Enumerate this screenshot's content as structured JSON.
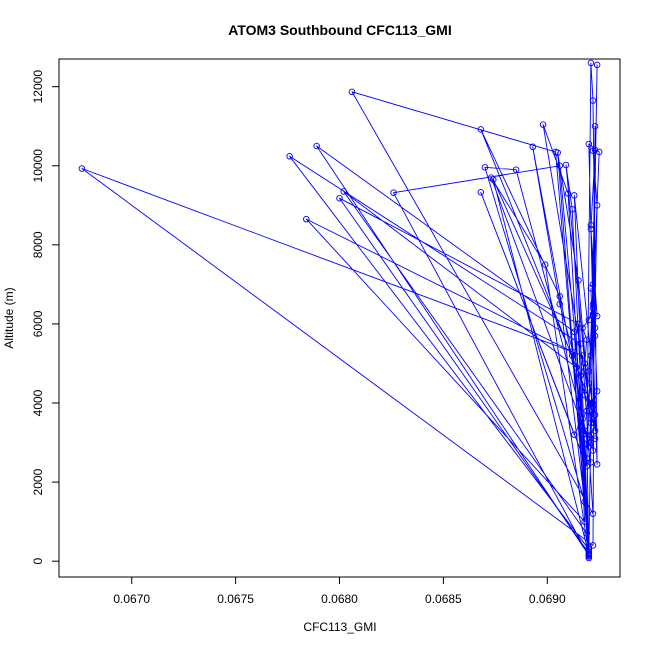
{
  "chart_data": {
    "type": "line",
    "title": "ATOM3 Southbound CFC113_GMI",
    "xlabel": "CFC113_GMI",
    "ylabel": "Altitude (m)",
    "xlim": [
      0.06665,
      0.06935
    ],
    "ylim": [
      -400,
      12700
    ],
    "x_ticks": [
      0.067,
      0.0675,
      0.068,
      0.0685,
      0.069
    ],
    "x_tick_labels": [
      "0.0670",
      "0.0675",
      "0.0680",
      "0.0685",
      "0.0690"
    ],
    "y_ticks": [
      0,
      2000,
      4000,
      6000,
      8000,
      10000,
      12000
    ],
    "y_tick_labels": [
      "0",
      "2000",
      "4000",
      "6000",
      "8000",
      "10000",
      "12000"
    ],
    "grid": false,
    "line_color": "#0000ff",
    "marker": "open-circle",
    "series": [
      {
        "points": [
          [
            0.0692,
            250
          ],
          [
            0.06924,
            12550
          ],
          [
            0.06921,
            3000
          ],
          [
            0.06923,
            11000
          ],
          [
            0.06922,
            400
          ],
          [
            0.06676,
            9930
          ],
          [
            0.06917,
            5200
          ],
          [
            0.06922,
            1200
          ],
          [
            0.06806,
            11870
          ],
          [
            0.06904,
            10350
          ],
          [
            0.0692,
            300
          ],
          [
            0.06776,
            10240
          ],
          [
            0.06916,
            5500
          ],
          [
            0.0692,
            150
          ],
          [
            0.06789,
            10500
          ],
          [
            0.06913,
            5800
          ],
          [
            0.06918,
            1000
          ],
          [
            0.06784,
            8650
          ],
          [
            0.06912,
            5300
          ],
          [
            0.0692,
            200
          ],
          [
            0.068,
            9180
          ],
          [
            0.06915,
            6000
          ],
          [
            0.06919,
            700
          ],
          [
            0.06802,
            9350
          ],
          [
            0.06914,
            4900
          ],
          [
            0.0692,
            120
          ],
          [
            0.06826,
            9320
          ],
          [
            0.06906,
            10000
          ],
          [
            0.06919,
            2400
          ],
          [
            0.06868,
            9330
          ],
          [
            0.06913,
            3200
          ],
          [
            0.06921,
            4000
          ],
          [
            0.06868,
            10920
          ],
          [
            0.06906,
            6700
          ],
          [
            0.06918,
            1500
          ],
          [
            0.0687,
            9960
          ],
          [
            0.06885,
            9900
          ],
          [
            0.0692,
            3000
          ],
          [
            0.06873,
            9700
          ],
          [
            0.06899,
            7500
          ],
          [
            0.0692,
            180
          ],
          [
            0.06874,
            9650
          ],
          [
            0.06912,
            5200
          ],
          [
            0.06921,
            2500
          ],
          [
            0.06893,
            10480
          ],
          [
            0.06906,
            6500
          ],
          [
            0.06922,
            3500
          ],
          [
            0.06898,
            11040
          ],
          [
            0.0691,
            9300
          ],
          [
            0.0692,
            80
          ],
          [
            0.06905,
            10330
          ],
          [
            0.06915,
            7100
          ],
          [
            0.06922,
            2800
          ],
          [
            0.06909,
            10020
          ],
          [
            0.06912,
            8900
          ],
          [
            0.0692,
            350
          ],
          [
            0.06913,
            9250
          ],
          [
            0.06921,
            5200
          ],
          [
            0.06922,
            6250
          ],
          [
            0.0692,
            10550
          ],
          [
            0.06925,
            10350
          ],
          [
            0.06919,
            2600
          ],
          [
            0.06921,
            12600
          ],
          [
            0.06922,
            11650
          ],
          [
            0.06924,
            2450
          ],
          [
            0.06921,
            6900
          ],
          [
            0.06922,
            5500
          ],
          [
            0.06923,
            3700
          ],
          [
            0.0692,
            4500
          ],
          [
            0.06922,
            7000
          ],
          [
            0.06923,
            5900
          ],
          [
            0.06921,
            8500
          ],
          [
            0.06922,
            6500
          ],
          [
            0.0692,
            4800
          ],
          [
            0.06923,
            3300
          ],
          [
            0.06922,
            6200
          ],
          [
            0.06924,
            6200
          ],
          [
            0.06921,
            8400
          ],
          [
            0.06923,
            10400
          ],
          [
            0.06922,
            10380
          ],
          [
            0.06924,
            9000
          ],
          [
            0.06922,
            4000
          ],
          [
            0.06921,
            3200
          ],
          [
            0.06923,
            3100
          ],
          [
            0.06918,
            3300
          ],
          [
            0.06916,
            3400
          ],
          [
            0.06917,
            3600
          ],
          [
            0.06919,
            3800
          ],
          [
            0.06918,
            4200
          ],
          [
            0.06917,
            4400
          ],
          [
            0.06916,
            4700
          ],
          [
            0.06918,
            5000
          ],
          [
            0.06919,
            5600
          ],
          [
            0.06917,
            5900
          ],
          [
            0.0692,
            6100
          ],
          [
            0.06922,
            6400
          ],
          [
            0.06923,
            5700
          ],
          [
            0.06924,
            4300
          ],
          [
            0.06922,
            3900
          ],
          [
            0.06921,
            3500
          ],
          [
            0.0692,
            2900
          ],
          [
            0.06919,
            3100
          ],
          [
            0.0692,
            150
          ]
        ]
      }
    ]
  }
}
